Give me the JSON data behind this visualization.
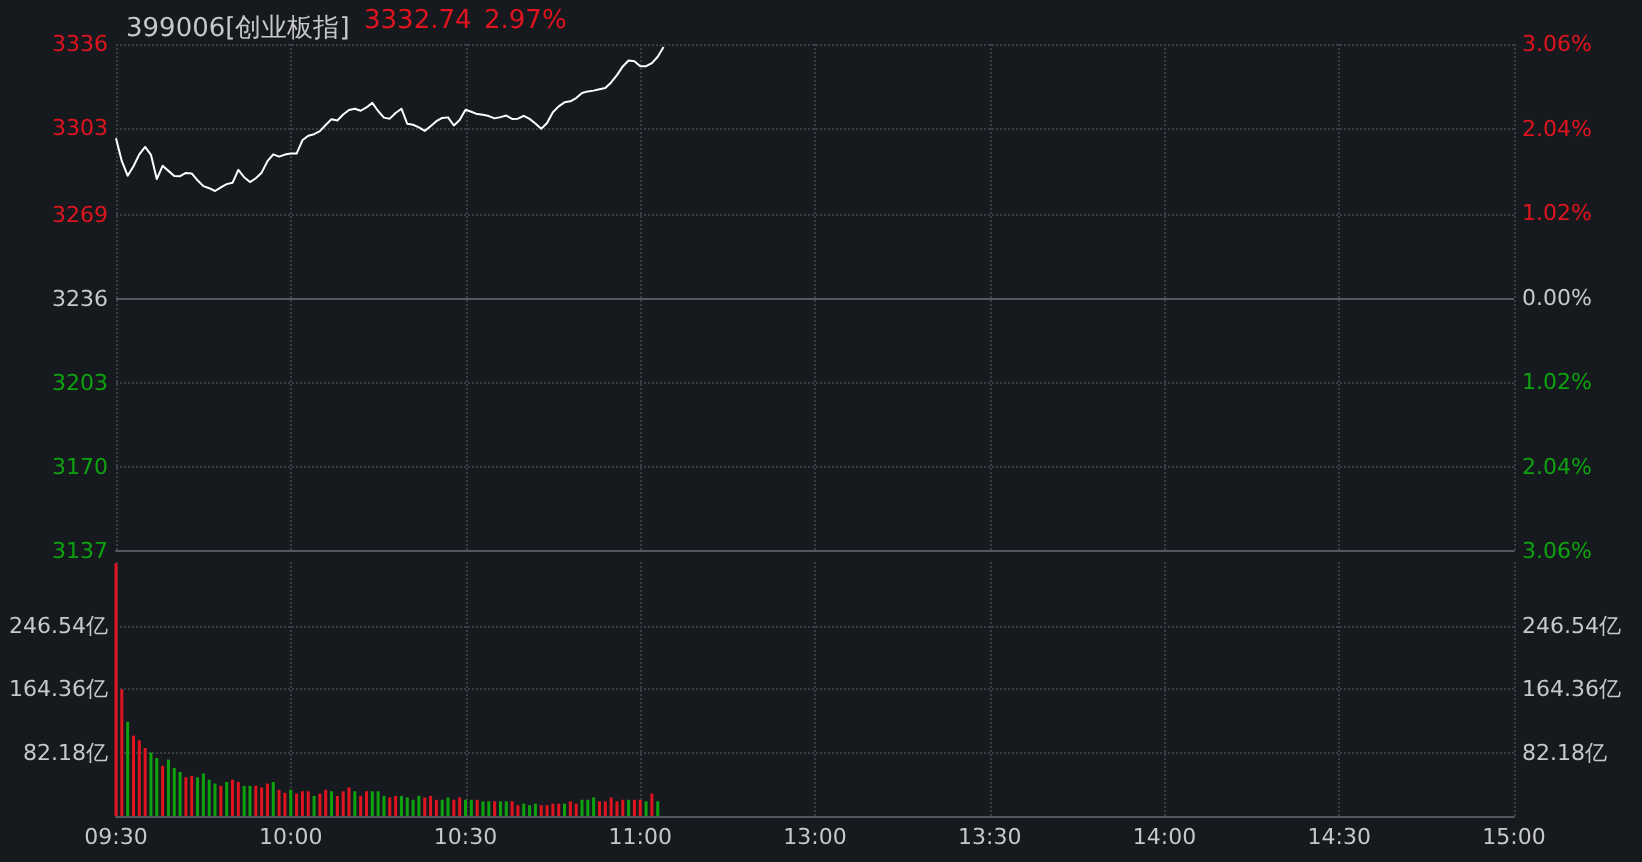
{
  "chart_data": [
    {
      "type": "line",
      "title": "399006[创业板指]",
      "annotations": [
        "3332.74",
        "2.97%"
      ],
      "categories": [
        null,
        null,
        null,
        null,
        null,
        null,
        null,
        null,
        null,
        null,
        null,
        null,
        null,
        null,
        null,
        null,
        null,
        null,
        null,
        null,
        null,
        null,
        null,
        null,
        null,
        null,
        null,
        null,
        null,
        null,
        null,
        null,
        null,
        null,
        null,
        null,
        null,
        null,
        null,
        null,
        null,
        null,
        null,
        null,
        null,
        null,
        null,
        null,
        null,
        null,
        null,
        null,
        null,
        null,
        null,
        null,
        null,
        null,
        null,
        null,
        null,
        null,
        null,
        null,
        null,
        null,
        null,
        null,
        null,
        null,
        null,
        null,
        null,
        null,
        null,
        null,
        null,
        null,
        null,
        null,
        null,
        null,
        null,
        null,
        null,
        null,
        null,
        null,
        null,
        null,
        null,
        null,
        null,
        null,
        null,
        null,
        null,
        null,
        null,
        null,
        null,
        null,
        null,
        null,
        null,
        null,
        null,
        null,
        null,
        null,
        null,
        null,
        null,
        null,
        null,
        null,
        null,
        null,
        null,
        null,
        null,
        null,
        null,
        null,
        null,
        null,
        null,
        null,
        null,
        null,
        null,
        null,
        null,
        null,
        null,
        null,
        null,
        null,
        null,
        null,
        null,
        null,
        null,
        null,
        null,
        null,
        null,
        null,
        null,
        null,
        null,
        null,
        null,
        null,
        null,
        null,
        null,
        null,
        null,
        null,
        null,
        null,
        null,
        null,
        null,
        null,
        null,
        null,
        null,
        null,
        null,
        null,
        null,
        null,
        null,
        null,
        null,
        null,
        null,
        null,
        null,
        null,
        null,
        null,
        null,
        null,
        null,
        null,
        null,
        null,
        null,
        null,
        null,
        null,
        null,
        null,
        null,
        null,
        null,
        null,
        null,
        null,
        null,
        null,
        null,
        null,
        null,
        null,
        null,
        null,
        null,
        null,
        null,
        null,
        null,
        null,
        null,
        null,
        null,
        null,
        null,
        null,
        null,
        null,
        null,
        null,
        null,
        null,
        null,
        null,
        null,
        null,
        null,
        null,
        null,
        null,
        null,
        null,
        null,
        null,
        null
      ],
      "ylim": [
        3137,
        3336
      ],
      "yticks": [
        3137,
        3170,
        3203,
        3236,
        3269,
        3303,
        3336
      ],
      "y2lim": [
        -3.06,
        3.06
      ],
      "y2ticks": [
        {
          "value": -3.06,
          "label": "3.06%"
        },
        {
          "value": -2.04,
          "label": "2.04%"
        },
        {
          "value": -1.02,
          "label": "1.02%"
        },
        {
          "value": 0,
          "label": "0.00%"
        },
        {
          "value": 1.02,
          "label": "1.02%"
        },
        {
          "value": 2.04,
          "label": "2.04%"
        },
        {
          "value": 3.06,
          "label": "3.06%"
        }
      ],
      "tick_labels": "y",
      "grid": true,
      "ref_lines": [
        {
          "axis": "y",
          "value": 3236,
          "color": "#55595f"
        }
      ],
      "series": [
        {
          "color": "#ffffff",
          "values": [
            3299.0,
            3290.0,
            3284.3,
            3288.0,
            3292.7,
            3295.6,
            3292.5,
            3283.0,
            3288.2,
            3286.2,
            3284.2,
            3284.1,
            3285.4,
            3285.2,
            3282.5,
            3280.2,
            3279.4,
            3278.3,
            3279.7,
            3281.0,
            3281.5,
            3286.6,
            3283.7,
            3281.8,
            3283.3,
            3285.5,
            3290.0,
            3292.7,
            3291.8,
            3292.6,
            3293.0,
            3293.0,
            3298.2,
            3300.0,
            3300.6,
            3301.8,
            3304.2,
            3306.5,
            3306.0,
            3308.3,
            3310.1,
            3310.6,
            3309.8,
            3311.1,
            3312.9,
            3309.7,
            3307.1,
            3306.7,
            3308.9,
            3310.6,
            3304.7,
            3304.3,
            3303.3,
            3301.9,
            3303.7,
            3305.7,
            3307.0,
            3307.2,
            3304.0,
            3306.2,
            3310.2,
            3309.4,
            3308.5,
            3308.2,
            3307.7,
            3306.8,
            3307.3,
            3307.9,
            3306.6,
            3306.7,
            3307.8,
            3306.6,
            3304.8,
            3302.7,
            3305.0,
            3309.2,
            3311.5,
            3313.1,
            3313.5,
            3314.8,
            3316.8,
            3317.4,
            3317.7,
            3318.2,
            3318.7,
            3320.9,
            3323.8,
            3327.2,
            3329.5,
            3329.2,
            3327.3,
            3327.3,
            3328.5,
            3331.0,
            3334.8,
            null,
            null,
            null,
            null,
            null,
            null,
            null,
            null,
            null,
            null,
            null,
            null,
            null,
            null,
            null,
            null,
            null,
            null,
            null,
            null,
            null,
            null,
            null,
            null,
            null,
            null,
            null,
            null,
            null,
            null,
            null,
            null,
            null,
            null,
            null,
            null,
            null,
            null,
            null,
            null,
            null,
            null,
            null,
            null,
            null,
            null,
            null,
            null,
            null,
            null,
            null,
            null,
            null,
            null,
            null,
            null,
            null,
            null,
            null,
            null,
            null,
            null,
            null,
            null,
            null,
            null,
            null,
            null,
            null,
            null,
            null,
            null,
            null,
            null,
            null,
            null,
            null,
            null,
            null,
            null,
            null,
            null,
            null,
            null,
            null,
            null,
            null,
            null,
            null,
            null,
            null,
            null,
            null,
            null,
            null,
            null,
            null,
            null,
            null,
            null,
            null,
            null,
            null,
            null,
            null,
            null,
            null,
            null,
            null,
            null,
            null,
            null,
            null,
            null,
            null,
            null,
            null,
            null,
            null,
            null,
            null,
            null,
            null,
            null,
            null,
            null,
            null,
            null,
            null,
            null,
            null,
            null,
            null,
            null,
            null,
            null,
            null,
            null,
            null,
            null,
            null,
            null,
            null,
            null,
            null,
            null
          ]
        }
      ]
    },
    {
      "type": "bar",
      "categories": [
        "09:30",
        null,
        null,
        null,
        null,
        null,
        null,
        null,
        null,
        null,
        null,
        null,
        null,
        null,
        null,
        null,
        null,
        null,
        null,
        null,
        null,
        null,
        null,
        null,
        null,
        null,
        null,
        null,
        null,
        null,
        "10:00",
        null,
        null,
        null,
        null,
        null,
        null,
        null,
        null,
        null,
        null,
        null,
        null,
        null,
        null,
        null,
        null,
        null,
        null,
        null,
        null,
        null,
        null,
        null,
        null,
        null,
        null,
        null,
        null,
        null,
        "10:30",
        null,
        null,
        null,
        null,
        null,
        null,
        null,
        null,
        null,
        null,
        null,
        null,
        null,
        null,
        null,
        null,
        null,
        null,
        null,
        null,
        null,
        null,
        null,
        null,
        null,
        null,
        null,
        null,
        null,
        "11:00",
        null,
        null,
        null,
        null,
        null,
        null,
        null,
        null,
        null,
        null,
        null,
        null,
        null,
        null,
        null,
        null,
        null,
        null,
        null,
        null,
        null,
        null,
        null,
        null,
        null,
        null,
        null,
        null,
        null,
        "13:00",
        null,
        null,
        null,
        null,
        null,
        null,
        null,
        null,
        null,
        null,
        null,
        null,
        null,
        null,
        null,
        null,
        null,
        null,
        null,
        null,
        null,
        null,
        null,
        null,
        null,
        null,
        null,
        null,
        null,
        "13:30",
        null,
        null,
        null,
        null,
        null,
        null,
        null,
        null,
        null,
        null,
        null,
        null,
        null,
        null,
        null,
        null,
        null,
        null,
        null,
        null,
        null,
        null,
        null,
        null,
        null,
        null,
        null,
        null,
        null,
        "14:00",
        null,
        null,
        null,
        null,
        null,
        null,
        null,
        null,
        null,
        null,
        null,
        null,
        null,
        null,
        null,
        null,
        null,
        null,
        null,
        null,
        null,
        null,
        null,
        null,
        null,
        null,
        null,
        null,
        null,
        "14:30",
        null,
        null,
        null,
        null,
        null,
        null,
        null,
        null,
        null,
        null,
        null,
        null,
        null,
        null,
        null,
        null,
        null,
        null,
        null,
        null,
        null,
        null,
        null,
        null,
        null,
        null,
        null,
        null,
        null,
        "15:00"
      ],
      "ylim": [
        0,
        328.72
      ],
      "yticks": [
        {
          "value": 82.18,
          "label": "82.18亿"
        },
        {
          "value": 164.36,
          "label": "164.36亿"
        },
        {
          "value": 246.54,
          "label": "246.54亿"
        }
      ],
      "y2lim": [
        0,
        328.72
      ],
      "y2ticks": [
        {
          "value": 82.18,
          "label": "82.18亿"
        },
        {
          "value": 164.36,
          "label": "164.36亿"
        },
        {
          "value": 246.54,
          "label": "246.54亿"
        }
      ],
      "grid": true,
      "values": [
        327,
        164,
        122,
        104,
        98,
        88,
        82,
        75,
        65,
        73,
        62,
        57,
        50,
        52,
        50,
        55,
        47,
        42,
        39,
        44,
        47,
        44,
        39,
        39,
        39,
        37,
        42,
        44,
        34,
        30,
        34,
        29,
        32,
        32,
        26,
        29,
        34,
        32,
        26,
        32,
        37,
        32,
        26,
        32,
        32,
        32,
        26,
        24,
        26,
        26,
        24,
        21,
        26,
        24,
        26,
        21,
        21,
        24,
        21,
        24,
        21,
        21,
        21,
        19,
        19,
        19,
        19,
        19,
        19,
        14,
        16,
        14,
        16,
        14,
        14,
        16,
        16,
        16,
        19,
        16,
        21,
        21,
        24,
        19,
        19,
        24,
        19,
        21,
        21,
        21,
        21,
        19,
        29,
        19,
        null,
        null,
        null,
        null,
        null,
        null,
        null,
        null,
        null,
        null,
        null,
        null,
        null,
        null,
        null,
        null,
        null,
        null,
        null,
        null,
        null,
        null,
        null,
        null,
        null,
        null,
        null,
        null,
        null,
        null,
        null,
        null,
        null,
        null,
        null,
        null,
        null,
        null,
        null,
        null,
        null,
        null,
        null,
        null,
        null,
        null,
        null,
        null,
        null,
        null,
        null,
        null,
        null,
        null,
        null,
        null,
        null,
        null,
        null,
        null,
        null,
        null,
        null,
        null,
        null,
        null,
        null,
        null,
        null,
        null,
        null,
        null,
        null,
        null,
        null,
        null,
        null,
        null,
        null,
        null,
        null,
        null,
        null,
        null,
        null,
        null,
        null,
        null,
        null,
        null,
        null,
        null,
        null,
        null,
        null,
        null,
        null,
        null,
        null,
        null,
        null,
        null,
        null,
        null,
        null,
        null,
        null,
        null,
        null,
        null,
        null,
        null,
        null,
        null,
        null,
        null,
        null,
        null,
        null,
        null,
        null,
        null,
        null,
        null,
        null,
        null,
        null,
        null,
        null,
        null,
        null,
        null,
        null,
        null,
        null,
        null,
        null,
        null,
        null,
        null,
        null,
        null,
        null,
        null,
        null,
        null,
        null
      ],
      "colors": [
        "#e0141e",
        "#e0141e",
        "#0ea30e",
        "#e0141e",
        "#e0141e",
        "#e0141e",
        "#0ea30e",
        "#0ea30e",
        "#e0141e",
        "#0ea30e",
        "#0ea30e",
        "#0ea30e",
        "#e0141e",
        "#e0141e",
        "#0ea30e",
        "#0ea30e",
        "#0ea30e",
        "#0ea30e",
        "#e0141e",
        "#0ea30e",
        "#e0141e",
        "#e0141e",
        "#0ea30e",
        "#0ea30e",
        "#e0141e",
        "#e0141e",
        "#e0141e",
        "#0ea30e",
        "#e0141e",
        "#e0141e",
        "#0ea30e",
        "#e0141e",
        "#e0141e",
        "#e0141e",
        "#0ea30e",
        "#e0141e",
        "#e0141e",
        "#0ea30e",
        "#e0141e",
        "#e0141e",
        "#e0141e",
        "#0ea30e",
        "#e0141e",
        "#e0141e",
        "#0ea30e",
        "#0ea30e",
        "#0ea30e",
        "#e0141e",
        "#e0141e",
        "#0ea30e",
        "#0ea30e",
        "#0ea30e",
        "#0ea30e",
        "#e0141e",
        "#e0141e",
        "#e0141e",
        "#0ea30e",
        "#0ea30e",
        "#e0141e",
        "#e0141e",
        "#0ea30e",
        "#0ea30e",
        "#e0141e",
        "#0ea30e",
        "#0ea30e",
        "#e0141e",
        "#0ea30e",
        "#0ea30e",
        "#e0141e",
        "#e0141e",
        "#0ea30e",
        "#0ea30e",
        "#0ea30e",
        "#e0141e",
        "#e0141e",
        "#e0141e",
        "#e0141e",
        "#0ea30e",
        "#e0141e",
        "#e0141e",
        "#0ea30e",
        "#0ea30e",
        "#0ea30e",
        "#e0141e",
        "#e0141e",
        "#e0141e",
        "#e0141e",
        "#e0141e",
        "#0ea30e",
        "#e0141e",
        "#e0141e",
        "#0ea30e",
        "#e0141e",
        "#0ea30e",
        null,
        null,
        null,
        null,
        null,
        null,
        null,
        null,
        null,
        null,
        null,
        null,
        null,
        null,
        null,
        null,
        null,
        null,
        null,
        null,
        null,
        null,
        null,
        null,
        null,
        null,
        null,
        null,
        null,
        null,
        null,
        null,
        null,
        null,
        null,
        null,
        null,
        null,
        null,
        null,
        null,
        null,
        null,
        null,
        null,
        null,
        null,
        null,
        null,
        null,
        null,
        null,
        null,
        null,
        null,
        null,
        null,
        null,
        null,
        null,
        null,
        null,
        null,
        null,
        null,
        null,
        null,
        null,
        null,
        null,
        null,
        null,
        null,
        null,
        null,
        null,
        null,
        null,
        null,
        null,
        null,
        null,
        null,
        null,
        null,
        null,
        null,
        null,
        null,
        null,
        null,
        null,
        null,
        null,
        null,
        null,
        null,
        null,
        null,
        null,
        null,
        null,
        null,
        null,
        null,
        null,
        null,
        null,
        null,
        null,
        null,
        null,
        null,
        null,
        null,
        null,
        null,
        null,
        null,
        null,
        null,
        null,
        null,
        null,
        null,
        null,
        null,
        null,
        null,
        null,
        null,
        null,
        null,
        null,
        null,
        null,
        null,
        null,
        null,
        null,
        null,
        null,
        null,
        null,
        null,
        null,
        null
      ]
    }
  ]
}
